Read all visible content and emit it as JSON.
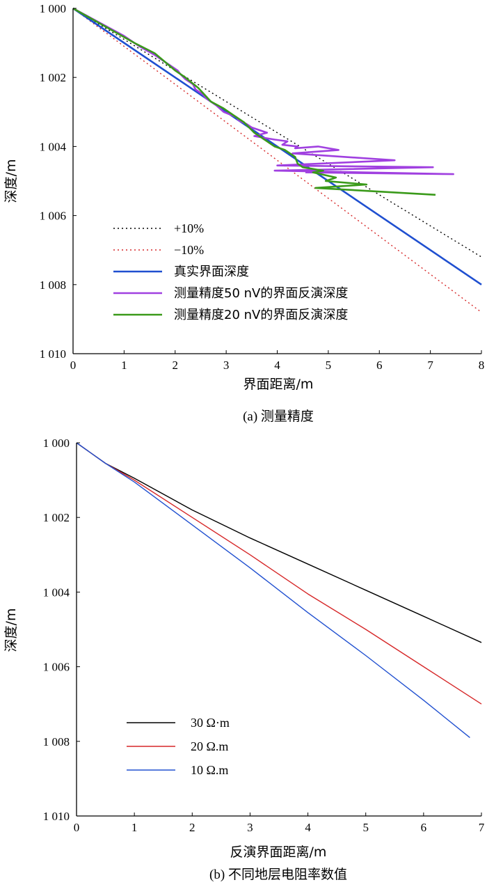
{
  "chart_data": [
    {
      "type": "line",
      "caption": "(a) 测量精度",
      "xlabel": "界面距离/m",
      "ylabel": "深度/m",
      "xlim": [
        0,
        8
      ],
      "ylim": [
        1000,
        1010
      ],
      "y_inverted": true,
      "x_ticks": [
        "0",
        "1",
        "2",
        "3",
        "4",
        "5",
        "6",
        "7",
        "8"
      ],
      "y_ticks": [
        "1 000",
        "1 002",
        "1 004",
        "1 006",
        "1 008",
        "1 010"
      ],
      "legend_position": "lower-left",
      "series": [
        {
          "name": "+10%",
          "color": "#000000",
          "style": "dotted",
          "x": [
            0,
            8
          ],
          "y": [
            1000,
            1007.2
          ]
        },
        {
          "name": "−10%",
          "color": "#d62728",
          "style": "dotted",
          "x": [
            0,
            8
          ],
          "y": [
            1000,
            1008.8
          ]
        },
        {
          "name": "真实界面深度",
          "color": "#1f4fd0",
          "style": "solid",
          "x": [
            0,
            8
          ],
          "y": [
            1000,
            1008
          ]
        },
        {
          "name": "测量精度50 nV的界面反演深度",
          "color": "#a040e0",
          "style": "solid",
          "x": [
            0,
            0.5,
            1.0,
            1.3,
            1.6,
            1.75,
            1.9,
            2.05,
            2.1,
            2.2,
            2.35,
            2.4,
            2.55,
            2.6,
            2.8,
            2.95,
            3.2,
            3.25,
            3.4,
            3.5,
            3.7,
            3.8,
            3.55,
            3.95,
            4.2,
            4.1,
            4.4,
            4.35,
            4.8,
            5.2,
            4.3,
            6.3,
            4.0,
            7.05,
            3.95,
            7.45,
            4.55
          ],
          "y": [
            1000,
            1000.4,
            1000.8,
            1001.1,
            1001.35,
            1001.5,
            1001.65,
            1001.8,
            1001.9,
            1002.05,
            1002.2,
            1002.35,
            1002.5,
            1002.6,
            1002.8,
            1003.0,
            1003.15,
            1003.25,
            1003.35,
            1003.45,
            1003.55,
            1003.6,
            1003.7,
            1003.8,
            1003.85,
            1003.95,
            1004.0,
            1004.05,
            1004.0,
            1004.1,
            1004.2,
            1004.4,
            1004.55,
            1004.6,
            1004.7,
            1004.8,
            1004.75
          ]
        },
        {
          "name": "测量精度20 nV的界面反演深度",
          "color": "#3a9a1a",
          "style": "solid",
          "x": [
            0,
            0.6,
            1.2,
            1.6,
            2.0,
            2.2,
            2.45,
            2.7,
            2.95,
            3.15,
            3.35,
            3.55,
            3.75,
            3.95,
            4.15,
            4.35,
            4.4,
            4.5,
            4.9,
            4.7,
            5.15,
            4.95,
            5.75,
            4.75,
            7.1
          ],
          "y": [
            1000,
            1000.5,
            1001.0,
            1001.3,
            1001.8,
            1002.0,
            1002.3,
            1002.7,
            1002.9,
            1003.1,
            1003.3,
            1003.6,
            1003.8,
            1004.0,
            1004.1,
            1004.3,
            1004.5,
            1004.6,
            1004.7,
            1004.75,
            1004.9,
            1005.0,
            1005.1,
            1005.2,
            1005.4
          ]
        }
      ]
    },
    {
      "type": "line",
      "caption": "(b) 不同地层电阻率数值",
      "xlabel": "反演界面距离/m",
      "ylabel": "深度/m",
      "xlim": [
        0,
        7
      ],
      "ylim": [
        1000,
        1010
      ],
      "y_inverted": true,
      "x_ticks": [
        "0",
        "1",
        "2",
        "3",
        "4",
        "5",
        "6",
        "7"
      ],
      "y_ticks": [
        "1 000",
        "1 002",
        "1 004",
        "1 006",
        "1 008",
        "1 010"
      ],
      "legend_position": "lower-left",
      "series": [
        {
          "name": "30 Ω·m",
          "color": "#000000",
          "style": "solid",
          "x": [
            0,
            0.5,
            1,
            2,
            3,
            4,
            5,
            6,
            7
          ],
          "y": [
            1000,
            1000.55,
            1000.95,
            1001.8,
            1002.55,
            1003.25,
            1003.95,
            1004.65,
            1005.35
          ]
        },
        {
          "name": "20 Ω.m",
          "color": "#d62728",
          "style": "solid",
          "x": [
            0,
            0.5,
            1,
            2,
            3,
            4,
            5,
            6,
            7
          ],
          "y": [
            1000,
            1000.55,
            1001.0,
            1002.0,
            1003.0,
            1004.05,
            1005.0,
            1006.0,
            1007.0
          ]
        },
        {
          "name": "10 Ω.m",
          "color": "#2050d0",
          "style": "solid",
          "x": [
            0,
            0.5,
            1,
            2,
            3,
            4,
            5,
            6,
            6.8
          ],
          "y": [
            1000,
            1000.55,
            1001.05,
            1002.2,
            1003.35,
            1004.55,
            1005.7,
            1006.9,
            1007.9
          ]
        }
      ]
    }
  ]
}
